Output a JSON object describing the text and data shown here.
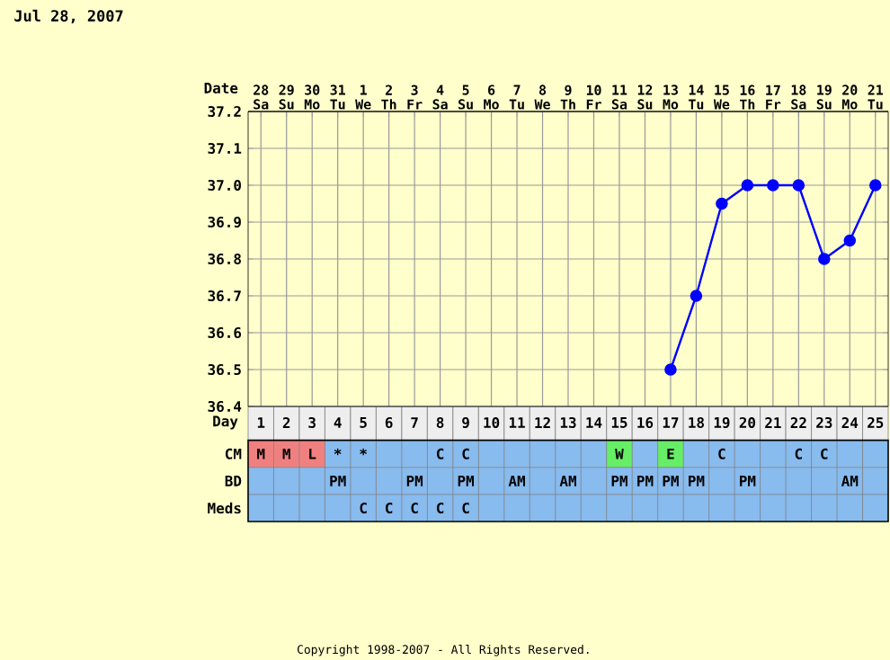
{
  "chart_data": [
    {
      "type": "line",
      "title": "Jul 28, 2007",
      "xlabel": "Day",
      "x2label": "Date",
      "x": [
        17,
        18,
        19,
        20,
        21,
        22,
        23,
        24,
        25
      ],
      "series": [
        {
          "color": "#0000ff",
          "values": [
            36.5,
            36.7,
            36.95,
            37.0,
            37.0,
            37.0,
            36.8,
            36.85,
            37.0
          ]
        }
      ],
      "xlim": [
        0.5,
        25.5
      ],
      "xticks": [
        1,
        2,
        3,
        4,
        5,
        6,
        7,
        8,
        9,
        10,
        11,
        12,
        13,
        14,
        15,
        16,
        17,
        18,
        19,
        20,
        21,
        22,
        23,
        24,
        25
      ],
      "x2lim": [
        "2007-07-27T12:00",
        "2007-08-21T12:00"
      ],
      "x2ticks": [
        {
          "value": "2007-07-28",
          "label": "28 Sa"
        },
        {
          "value": "2007-07-29",
          "label": "29 Su"
        },
        {
          "value": "2007-07-30",
          "label": "30 Mo"
        },
        {
          "value": "2007-07-31",
          "label": "31 Tu"
        },
        {
          "value": "2007-08-01",
          "label": "1 We"
        },
        {
          "value": "2007-08-02",
          "label": "2 Th"
        },
        {
          "value": "2007-08-03",
          "label": "3 Fr"
        },
        {
          "value": "2007-08-04",
          "label": "4 Sa"
        },
        {
          "value": "2007-08-05",
          "label": "5 Su"
        },
        {
          "value": "2007-08-06",
          "label": "6 Mo"
        },
        {
          "value": "2007-08-07",
          "label": "7 Tu"
        },
        {
          "value": "2007-08-08",
          "label": "8 We"
        },
        {
          "value": "2007-08-09",
          "label": "9 Th"
        },
        {
          "value": "2007-08-10",
          "label": "10 Fr"
        },
        {
          "value": "2007-08-11",
          "label": "11 Sa"
        },
        {
          "value": "2007-08-12",
          "label": "12 Su"
        },
        {
          "value": "2007-08-13",
          "label": "13 Mo"
        },
        {
          "value": "2007-08-14",
          "label": "14 Tu"
        },
        {
          "value": "2007-08-15",
          "label": "15 We"
        },
        {
          "value": "2007-08-16",
          "label": "16 Th"
        },
        {
          "value": "2007-08-17",
          "label": "17 Fr"
        },
        {
          "value": "2007-08-18",
          "label": "18 Sa"
        },
        {
          "value": "2007-08-19",
          "label": "19 Su"
        },
        {
          "value": "2007-08-20",
          "label": "20 Mo"
        },
        {
          "value": "2007-08-21",
          "label": "21 Tu"
        }
      ],
      "ylim": [
        36.4,
        37.2
      ],
      "yticks": [
        {
          "value": 36.4,
          "label": "36.4"
        },
        {
          "value": 36.5,
          "label": "36.5"
        },
        {
          "value": 36.6,
          "label": "36.6"
        },
        {
          "value": 36.7,
          "label": "36.7"
        },
        {
          "value": 36.8,
          "label": "36.8"
        },
        {
          "value": 36.9,
          "label": "36.9"
        },
        {
          "value": 37.0,
          "label": "37.0"
        },
        {
          "value": 37.1,
          "label": "37.1"
        },
        {
          "value": 37.2,
          "label": "37.2"
        }
      ],
      "grid": true,
      "marker": "circle"
    },
    {
      "type": "other",
      "y_categories": [
        "CM",
        "BD",
        "Meds"
      ],
      "cell_labels": [
        [
          "M",
          "M",
          "L",
          "*",
          "*",
          null,
          null,
          "C",
          "C",
          null,
          null,
          null,
          null,
          null,
          "W",
          null,
          "E",
          null,
          "C",
          null,
          null,
          "C",
          "C",
          null,
          null
        ],
        [
          null,
          null,
          null,
          "PM",
          null,
          null,
          "PM",
          null,
          "PM",
          null,
          "AM",
          null,
          "AM",
          null,
          "PM",
          "PM",
          "PM",
          "PM",
          null,
          "PM",
          null,
          null,
          null,
          "AM",
          null
        ],
        [
          null,
          null,
          null,
          null,
          "C",
          "C",
          "C",
          "C",
          "C",
          null,
          null,
          null,
          null,
          null,
          null,
          null,
          null,
          null,
          null,
          null,
          null,
          null,
          null,
          null,
          null
        ]
      ],
      "colors": [
        [
          "#f08080",
          "#f08080",
          "#f08080",
          "#88bbee",
          "#88bbee",
          "#88bbee",
          "#88bbee",
          "#88bbee",
          "#88bbee",
          "#88bbee",
          "#88bbee",
          "#88bbee",
          "#88bbee",
          "#88bbee",
          "#66ee66",
          "#88bbee",
          "#66ee66",
          "#88bbee",
          "#88bbee",
          "#88bbee",
          "#88bbee",
          "#88bbee",
          "#88bbee",
          "#88bbee",
          "#88bbee"
        ],
        [
          "#88bbee",
          "#88bbee",
          "#88bbee",
          "#88bbee",
          "#88bbee",
          "#88bbee",
          "#88bbee",
          "#88bbee",
          "#88bbee",
          "#88bbee",
          "#88bbee",
          "#88bbee",
          "#88bbee",
          "#88bbee",
          "#88bbee",
          "#88bbee",
          "#88bbee",
          "#88bbee",
          "#88bbee",
          "#88bbee",
          "#88bbee",
          "#88bbee",
          "#88bbee",
          "#88bbee",
          "#88bbee"
        ],
        [
          "#88bbee",
          "#88bbee",
          "#88bbee",
          "#88bbee",
          "#88bbee",
          "#88bbee",
          "#88bbee",
          "#88bbee",
          "#88bbee",
          "#88bbee",
          "#88bbee",
          "#88bbee",
          "#88bbee",
          "#88bbee",
          "#88bbee",
          "#88bbee",
          "#88bbee",
          "#88bbee",
          "#88bbee",
          "#88bbee",
          "#88bbee",
          "#88bbee",
          "#88bbee",
          "#88bbee",
          "#88bbee"
        ]
      ],
      "annotations": [
        "Copyright 1998-2007 - All Rights Reserved."
      ]
    }
  ]
}
